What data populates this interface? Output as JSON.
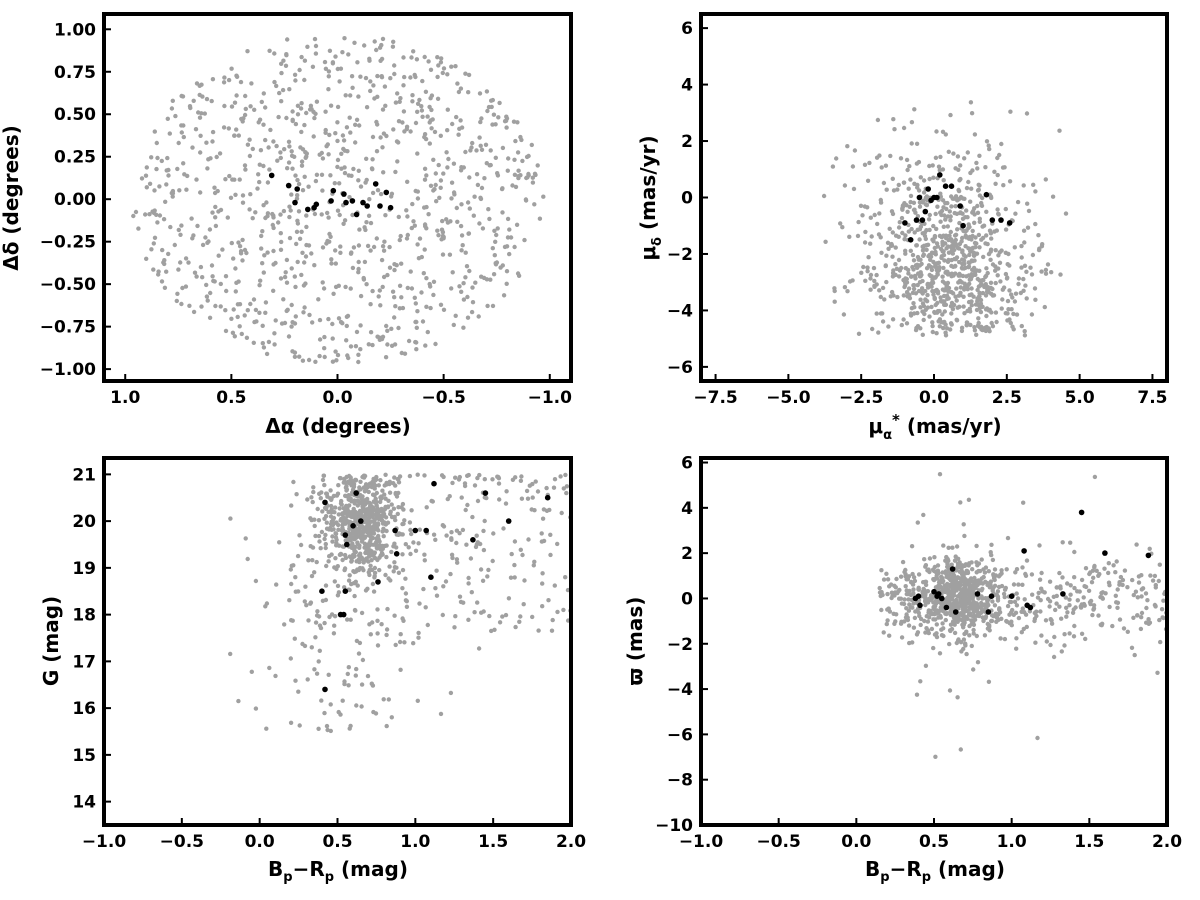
{
  "colors": {
    "field": "#a0a0a0",
    "members": "#000000",
    "axes": "#000000"
  },
  "chart_data": [
    {
      "type": "scatter",
      "xlabel": "Δα (degrees)",
      "ylabel": "Δδ (degrees)",
      "xlim": [
        1.1,
        -1.1
      ],
      "ylim": [
        -1.07,
        1.09
      ],
      "xticks": [
        1.0,
        0.5,
        0.0,
        -0.5,
        -1.0
      ],
      "xtick_labels": [
        "1.0",
        "0.5",
        "0.0",
        "−0.5",
        "−1.0"
      ],
      "yticks": [
        -1.0,
        -0.75,
        -0.5,
        -0.25,
        0.0,
        0.25,
        0.5,
        0.75,
        1.0
      ],
      "ytick_labels": [
        "−1.00",
        "−0.75",
        "−0.50",
        "−0.25",
        "0.00",
        "0.25",
        "0.50",
        "0.75",
        "1.00"
      ],
      "series": [
        {
          "color": "#a0a0a0",
          "distribution": "uniform disk centred on (0,0), radius 1.0 degree, ~1000 field stars"
        },
        {
          "color": "#000000",
          "points": [
            [
              0.31,
              0.14
            ],
            [
              0.23,
              0.08
            ],
            [
              0.19,
              0.06
            ],
            [
              0.2,
              -0.02
            ],
            [
              0.14,
              -0.06
            ],
            [
              0.11,
              -0.05
            ],
            [
              0.1,
              -0.03
            ],
            [
              0.03,
              -0.01
            ],
            [
              0.02,
              0.05
            ],
            [
              -0.03,
              0.03
            ],
            [
              -0.04,
              -0.02
            ],
            [
              -0.07,
              -0.01
            ],
            [
              -0.09,
              -0.09
            ],
            [
              -0.12,
              -0.02
            ],
            [
              -0.14,
              -0.04
            ],
            [
              -0.18,
              0.09
            ],
            [
              -0.2,
              -0.04
            ],
            [
              -0.23,
              0.04
            ],
            [
              -0.25,
              -0.05
            ]
          ]
        }
      ]
    },
    {
      "type": "scatter",
      "xlabel": "μα* (mas/yr)",
      "ylabel": "μδ (mas/yr)",
      "xlim": [
        -8,
        8
      ],
      "ylim": [
        -6.5,
        6.5
      ],
      "xticks": [
        -7.5,
        -5.0,
        -2.5,
        0.0,
        2.5,
        5.0,
        7.5
      ],
      "xtick_labels": [
        "−7.5",
        "−5.0",
        "−2.5",
        "0.0",
        "2.5",
        "5.0",
        "7.5"
      ],
      "yticks": [
        -6,
        -4,
        -2,
        0,
        2,
        4,
        6
      ],
      "ytick_labels": [
        "−6",
        "−4",
        "−2",
        "0",
        "2",
        "4",
        "6"
      ],
      "series": [
        {
          "color": "#a0a0a0",
          "distribution": "broad cloud centred near (0.5, −1.8), spread ±4 in μα*, −5 to +4 in μδ, ~900 stars"
        },
        {
          "color": "#000000",
          "points": [
            [
              -0.2,
              0.3
            ],
            [
              0.2,
              0.8
            ],
            [
              0.4,
              0.4
            ],
            [
              0.6,
              0.4
            ],
            [
              -0.3,
              -0.5
            ],
            [
              0.0,
              0.0
            ],
            [
              -0.1,
              -0.1
            ],
            [
              0.1,
              0.0
            ],
            [
              -0.5,
              0.0
            ],
            [
              -0.4,
              -0.8
            ],
            [
              -0.6,
              -0.8
            ],
            [
              -1.0,
              -0.9
            ],
            [
              -0.8,
              -1.5
            ],
            [
              0.9,
              -0.3
            ],
            [
              1.0,
              -1.0
            ],
            [
              1.8,
              0.1
            ],
            [
              2.0,
              -0.8
            ],
            [
              2.3,
              -0.8
            ],
            [
              2.6,
              -0.9
            ]
          ]
        }
      ]
    },
    {
      "type": "scatter",
      "xlabel": "Bp−Rp (mag)",
      "ylabel": "G (mag)",
      "xlim": [
        -1.0,
        2.0
      ],
      "ylim": [
        13.5,
        21.35
      ],
      "xticks": [
        -1.0,
        -0.5,
        0.0,
        0.5,
        1.0,
        1.5,
        2.0
      ],
      "xtick_labels": [
        "−1.0",
        "−0.5",
        "0.0",
        "0.5",
        "1.0",
        "1.5",
        "2.0"
      ],
      "yticks": [
        14,
        15,
        16,
        17,
        18,
        19,
        20,
        21
      ],
      "ytick_labels": [
        "14",
        "15",
        "16",
        "17",
        "18",
        "19",
        "20",
        "21"
      ],
      "series": [
        {
          "color": "#a0a0a0",
          "distribution": "field stars concentrated at Bp−Rp 0.5–0.8, G 19–21, with a scattered tail to brighter magnitudes; ~1000 stars"
        },
        {
          "color": "#000000",
          "points": [
            [
              0.42,
              20.4
            ],
            [
              0.62,
              20.6
            ],
            [
              0.6,
              19.9
            ],
            [
              0.65,
              20.0
            ],
            [
              0.55,
              19.7
            ],
            [
              0.56,
              19.5
            ],
            [
              0.87,
              19.8
            ],
            [
              0.88,
              19.3
            ],
            [
              0.76,
              18.7
            ],
            [
              0.4,
              18.5
            ],
            [
              0.55,
              18.5
            ],
            [
              0.52,
              18.0
            ],
            [
              0.54,
              18.0
            ],
            [
              1.0,
              19.8
            ],
            [
              1.07,
              19.8
            ],
            [
              1.12,
              20.8
            ],
            [
              1.1,
              18.8
            ],
            [
              1.37,
              19.6
            ],
            [
              1.45,
              20.6
            ],
            [
              1.6,
              20.0
            ],
            [
              1.85,
              20.5
            ],
            [
              0.42,
              16.4
            ]
          ]
        }
      ]
    },
    {
      "type": "scatter",
      "xlabel": "Bp−Rp (mag)",
      "ylabel": "ϖ (mas)",
      "xlim": [
        -1.0,
        2.0
      ],
      "ylim": [
        -10,
        6.2
      ],
      "xticks": [
        -1.0,
        -0.5,
        0.0,
        0.5,
        1.0,
        1.5,
        2.0
      ],
      "xtick_labels": [
        "−1.0",
        "−0.5",
        "0.0",
        "0.5",
        "1.0",
        "1.5",
        "2.0"
      ],
      "yticks": [
        -10,
        -8,
        -6,
        -4,
        -2,
        0,
        2,
        4,
        6
      ],
      "ytick_labels": [
        "−10",
        "−8",
        "−6",
        "−4",
        "−2",
        "0",
        "2",
        "4",
        "6"
      ],
      "series": [
        {
          "color": "#a0a0a0",
          "distribution": "field stars at Bp−Rp 0.1–2.0, parallax clustered near 0 with spread ±2 mas and outliers to −9 and +5; ~1000 stars"
        },
        {
          "color": "#000000",
          "points": [
            [
              0.38,
              0.0
            ],
            [
              0.4,
              0.1
            ],
            [
              0.41,
              -0.3
            ],
            [
              0.5,
              0.3
            ],
            [
              0.52,
              0.1
            ],
            [
              0.53,
              0.2
            ],
            [
              0.55,
              0.0
            ],
            [
              0.58,
              -0.4
            ],
            [
              0.62,
              1.3
            ],
            [
              0.64,
              -0.6
            ],
            [
              0.78,
              0.2
            ],
            [
              0.85,
              -0.6
            ],
            [
              0.87,
              0.1
            ],
            [
              1.0,
              0.1
            ],
            [
              1.08,
              2.1
            ],
            [
              1.1,
              -0.3
            ],
            [
              1.12,
              -0.4
            ],
            [
              1.33,
              0.2
            ],
            [
              1.45,
              3.8
            ],
            [
              1.6,
              2.0
            ],
            [
              1.88,
              1.9
            ]
          ]
        }
      ]
    }
  ]
}
